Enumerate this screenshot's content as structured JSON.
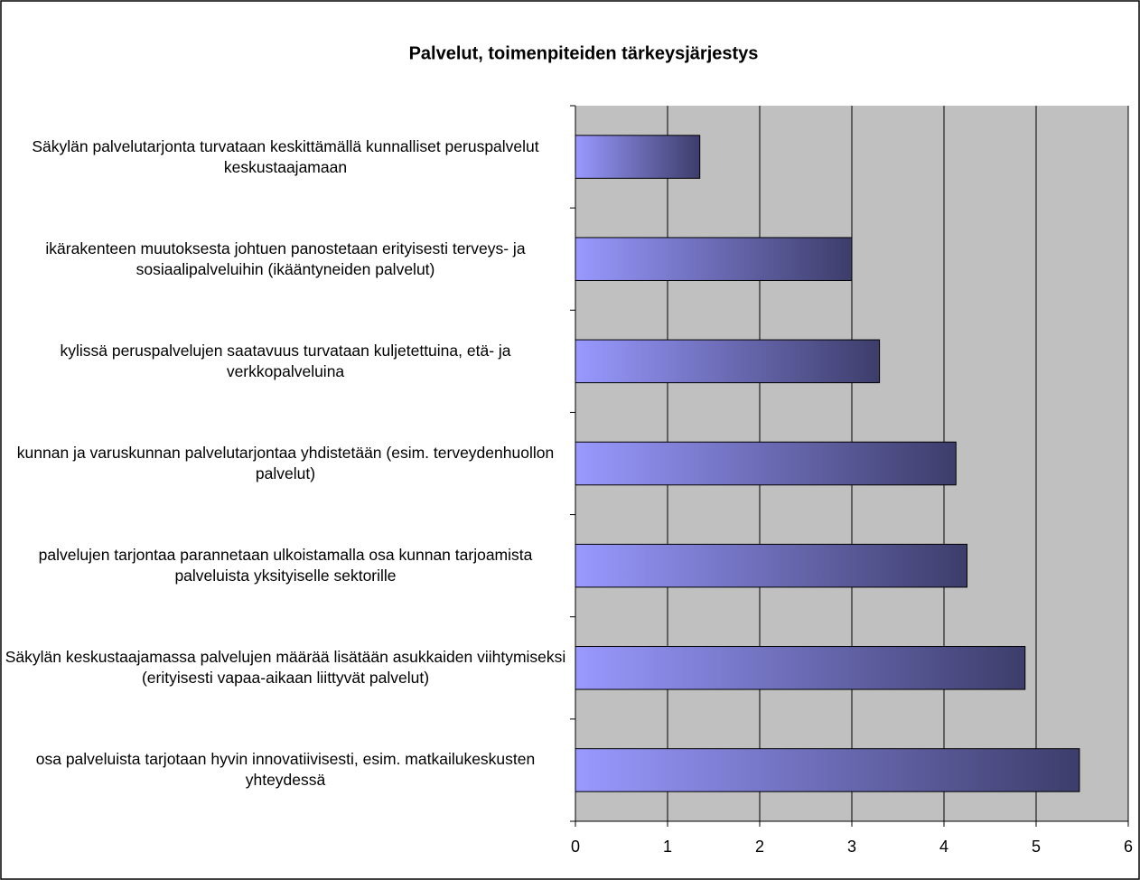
{
  "chart_data": {
    "type": "barh",
    "title": "Palvelut, toimenpiteiden tärkeysjärjestys",
    "categories": [
      "Säkylän palvelutarjonta turvataan keskittämällä kunnalliset peruspalvelut keskustaajamaan",
      "ikärakenteen muutoksesta johtuen panostetaan erityisesti terveys- ja sosiaalipalveluihin (ikääntyneiden palvelut)",
      "kylissä peruspalvelujen saatavuus turvataan kuljetettuina, etä- ja verkkopalveluina",
      "kunnan ja varuskunnan palvelutarjontaa yhdistetään (esim. terveydenhuollon palvelut)",
      "palvelujen tarjontaa parannetaan ulkoistamalla osa kunnan tarjoamista palveluista yksityiselle sektorille",
      "Säkylän keskustaajamassa palvelujen määrää lisätään asukkaiden viihtymiseksi (erityisesti vapaa-aikaan liittyvät palvelut)",
      "osa palveluista tarjotaan hyvin innovatiivisesti, esim. matkailukeskusten yhteydessä"
    ],
    "values": [
      1.35,
      3.0,
      3.3,
      4.13,
      4.25,
      4.88,
      5.47
    ],
    "color": [
      "#9999ff",
      "#3d3d6b"
    ],
    "xlim": [
      0,
      6
    ],
    "xticks": [
      0,
      1,
      2,
      3,
      4,
      5,
      6
    ],
    "grid": true
  }
}
